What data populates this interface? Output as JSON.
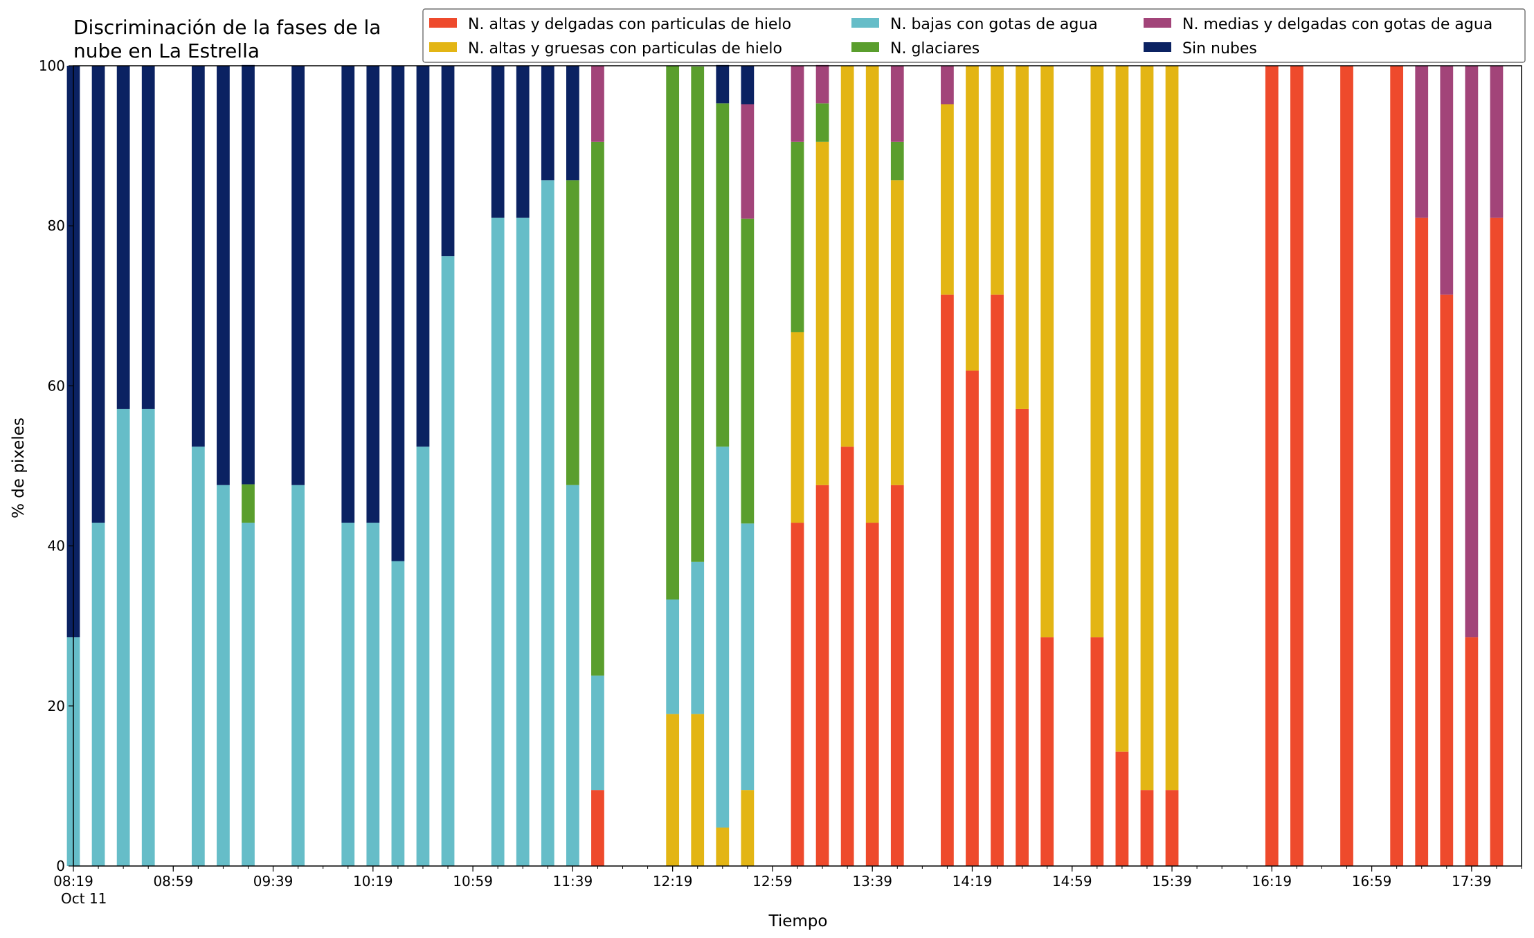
{
  "chart_data": {
    "type": "bar",
    "stacked": true,
    "title_line1": "Discriminación de la fases de la",
    "title_line2": "nube en La Estrella",
    "xlabel": "Tiempo",
    "ylabel": "% de pixeles",
    "ylim": [
      0,
      100
    ],
    "y_ticks": [
      0,
      20,
      40,
      60,
      80,
      100
    ],
    "x_ticks": [
      "08:19",
      "08:59",
      "09:39",
      "10:19",
      "10:59",
      "11:39",
      "12:19",
      "12:59",
      "13:39",
      "14:19",
      "14:59",
      "15:39",
      "16:19",
      "16:59",
      "17:39"
    ],
    "x_date_label": "Oct 11",
    "x_time_range": [
      "08:19",
      "17:59"
    ],
    "bar_interval_minutes": 10,
    "legend_placement": "top-right",
    "legend_columns": 3,
    "categories": [
      "08:19",
      "08:29",
      "08:39",
      "08:49",
      "08:59",
      "09:09",
      "09:19",
      "09:29",
      "09:39",
      "09:49",
      "09:59",
      "10:09",
      "10:19",
      "10:29",
      "10:39",
      "10:49",
      "10:59",
      "11:09",
      "11:19",
      "11:29",
      "11:39",
      "11:49",
      "11:59",
      "12:09",
      "12:19",
      "12:29",
      "12:39",
      "12:49",
      "12:59",
      "13:09",
      "13:19",
      "13:29",
      "13:39",
      "13:49",
      "13:59",
      "14:09",
      "14:19",
      "14:29",
      "14:39",
      "14:49",
      "14:59",
      "15:09",
      "15:19",
      "15:29",
      "15:39",
      "15:49",
      "15:59",
      "16:09",
      "16:19",
      "16:29",
      "16:39",
      "16:49",
      "16:59",
      "17:09",
      "17:19",
      "17:29",
      "17:39",
      "17:49"
    ],
    "series": [
      {
        "name": "N. altas y delgadas con particulas de hielo",
        "color": "#ee4a2c",
        "values": [
          0,
          0,
          0,
          0,
          0,
          0,
          0,
          0,
          0,
          0,
          0,
          0,
          0,
          0,
          0,
          0,
          0,
          0,
          0,
          0,
          0,
          9.5,
          0,
          0,
          0,
          0,
          0,
          0,
          0,
          42.9,
          47.6,
          52.4,
          42.9,
          47.6,
          0,
          71.4,
          61.9,
          71.4,
          57.1,
          28.6,
          0,
          28.6,
          14.3,
          9.5,
          9.5,
          0,
          0,
          0,
          100,
          100,
          0,
          100,
          0,
          100,
          81,
          71.4,
          28.6,
          81
        ]
      },
      {
        "name": "N. altas y gruesas con particulas de hielo",
        "color": "#e3b514",
        "values": [
          0,
          0,
          0,
          0,
          0,
          0,
          0,
          0,
          0,
          0,
          0,
          0,
          0,
          0,
          0,
          0,
          0,
          0,
          0,
          0,
          0,
          0,
          0,
          0,
          19,
          19,
          4.8,
          9.5,
          0,
          23.8,
          42.9,
          47.6,
          57.1,
          38.1,
          0,
          23.8,
          38.1,
          28.6,
          42.9,
          71.4,
          0,
          71.4,
          85.7,
          90.5,
          90.5,
          0,
          0,
          0,
          0,
          0,
          0,
          0,
          0,
          0,
          0,
          0,
          0,
          0
        ]
      },
      {
        "name": "N. bajas con gotas de agua",
        "color": "#66bdc8",
        "values": [
          28.6,
          42.9,
          57.1,
          57.1,
          0,
          52.4,
          47.6,
          42.9,
          0,
          47.6,
          0,
          42.9,
          42.9,
          38.1,
          52.4,
          76.2,
          0,
          81,
          81,
          85.7,
          47.6,
          14.3,
          0,
          0,
          14.3,
          19,
          47.6,
          33.3,
          0,
          0,
          0,
          0,
          0,
          0,
          0,
          0,
          0,
          0,
          0,
          0,
          0,
          0,
          0,
          0,
          0,
          0,
          0,
          0,
          0,
          0,
          0,
          0,
          0,
          0,
          0,
          0,
          0,
          0
        ]
      },
      {
        "name": "N. glaciares",
        "color": "#5a9e2d",
        "values": [
          0,
          0,
          0,
          0,
          0,
          0,
          0,
          4.8,
          0,
          0,
          0,
          0,
          0,
          0,
          0,
          0,
          0,
          0,
          0,
          0,
          38.1,
          66.7,
          0,
          0,
          66.7,
          61.9,
          42.9,
          38.1,
          0,
          23.8,
          4.8,
          0,
          0,
          4.8,
          0,
          0,
          0,
          0,
          0,
          0,
          0,
          0,
          0,
          0,
          0,
          0,
          0,
          0,
          0,
          0,
          0,
          0,
          0,
          0,
          0,
          0,
          0,
          0
        ]
      },
      {
        "name": "N. medias y delgadas con gotas de agua",
        "color": "#a24479",
        "values": [
          0,
          0,
          0,
          0,
          0,
          0,
          0,
          0,
          0,
          0,
          0,
          0,
          0,
          0,
          0,
          0,
          0,
          0,
          0,
          0,
          0,
          9.5,
          0,
          0,
          0,
          0,
          0,
          14.3,
          0,
          9.5,
          4.8,
          0,
          0,
          9.5,
          0,
          4.8,
          0,
          0,
          0,
          0,
          0,
          0,
          0,
          0,
          0,
          0,
          0,
          0,
          0,
          0,
          0,
          0,
          0,
          0,
          19,
          28.6,
          71.4,
          19
        ]
      },
      {
        "name": "Sin nubes",
        "color": "#0b2262",
        "values": [
          71.4,
          57.1,
          42.9,
          42.9,
          0,
          47.6,
          52.4,
          52.4,
          0,
          52.4,
          0,
          57.1,
          57.1,
          61.9,
          47.6,
          23.8,
          0,
          19,
          19,
          14.3,
          14.3,
          0,
          0,
          0,
          0,
          0,
          4.8,
          4.8,
          0,
          0,
          0,
          0,
          0,
          0,
          0,
          0,
          0,
          0,
          0,
          0,
          0,
          0,
          0,
          0,
          0,
          0,
          0,
          0,
          0,
          0,
          0,
          0,
          0,
          0,
          0,
          0,
          0,
          0
        ]
      }
    ]
  }
}
